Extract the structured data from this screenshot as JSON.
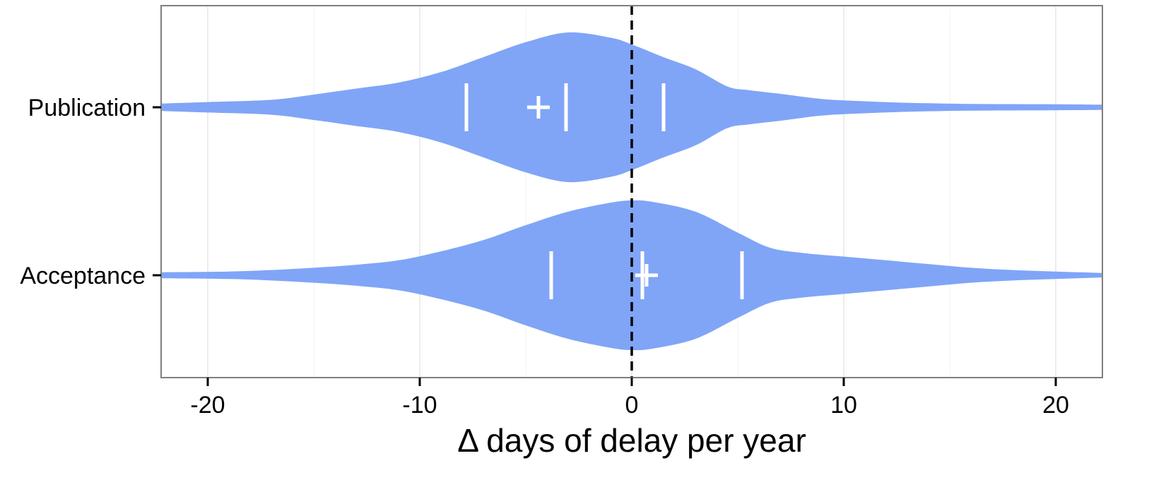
{
  "chart_data": {
    "type": "violin",
    "orientation": "horizontal",
    "xlabel": "Δ days of delay per year",
    "ylabel": "",
    "xlim": [
      -22.2,
      22.2
    ],
    "x_ticks": [
      -20,
      -10,
      0,
      10,
      20
    ],
    "x_tick_labels": [
      "-20",
      "-10",
      "0",
      "10",
      "20"
    ],
    "grid": true,
    "reference_line": {
      "x": 0,
      "style": "dashed",
      "color": "#000000"
    },
    "fill_color": "#80a5f7",
    "marker_color": "#ffffff",
    "categories": [
      "Publication",
      "Acceptance"
    ],
    "series": [
      {
        "category": "Publication",
        "quartiles": [
          -7.8,
          -3.1,
          1.5
        ],
        "mean": -4.4,
        "density_profile": [
          [
            -22.2,
            0.05
          ],
          [
            -20,
            0.07
          ],
          [
            -17,
            0.1
          ],
          [
            -15,
            0.17
          ],
          [
            -13,
            0.25
          ],
          [
            -11,
            0.33
          ],
          [
            -9,
            0.47
          ],
          [
            -7,
            0.67
          ],
          [
            -5,
            0.87
          ],
          [
            -3,
            1.0
          ],
          [
            -1,
            0.93
          ],
          [
            0,
            0.84
          ],
          [
            1.5,
            0.67
          ],
          [
            3,
            0.51
          ],
          [
            4.5,
            0.28
          ],
          [
            5.5,
            0.23
          ],
          [
            7,
            0.18
          ],
          [
            9,
            0.11
          ],
          [
            11,
            0.08
          ],
          [
            13,
            0.06
          ],
          [
            16,
            0.045
          ],
          [
            20,
            0.04
          ],
          [
            22.2,
            0.035
          ]
        ]
      },
      {
        "category": "Acceptance",
        "quartiles": [
          -3.8,
          0.5,
          5.2
        ],
        "mean": 0.7,
        "density_profile": [
          [
            -22.2,
            0.04
          ],
          [
            -19,
            0.05
          ],
          [
            -17,
            0.07
          ],
          [
            -15,
            0.1
          ],
          [
            -13,
            0.14
          ],
          [
            -11,
            0.2
          ],
          [
            -9,
            0.32
          ],
          [
            -7,
            0.47
          ],
          [
            -5,
            0.67
          ],
          [
            -3,
            0.85
          ],
          [
            -1,
            0.97
          ],
          [
            0,
            1.0
          ],
          [
            1,
            0.98
          ],
          [
            3,
            0.85
          ],
          [
            5,
            0.57
          ],
          [
            6.5,
            0.37
          ],
          [
            8,
            0.3
          ],
          [
            10,
            0.25
          ],
          [
            12,
            0.2
          ],
          [
            14,
            0.15
          ],
          [
            16,
            0.1
          ],
          [
            18,
            0.07
          ],
          [
            20,
            0.05
          ],
          [
            22.2,
            0.03
          ]
        ]
      }
    ]
  }
}
